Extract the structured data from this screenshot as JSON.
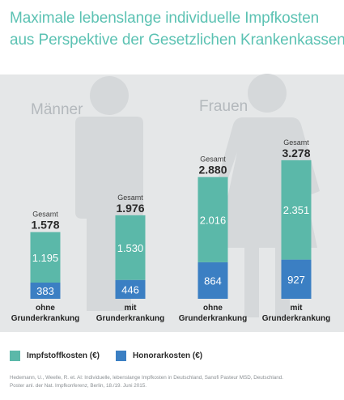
{
  "title_line1": "Maximale lebenslange individuelle Impfkosten",
  "title_line2": "aus Perspektive der Gesetzlichen Krankenkassen.",
  "colors": {
    "vaccine": "#5bb8a9",
    "fee": "#3b7fc3",
    "title": "#5cc2b3",
    "silhouette": "#d5d8da",
    "panel": "#e5e7e8"
  },
  "icons": {
    "male": "male-silhouette-icon",
    "female": "female-silhouette-icon"
  },
  "chart_data": {
    "type": "bar",
    "stacked": true,
    "groups": [
      "Männer",
      "Frauen"
    ],
    "total_caption": "Gesamt",
    "bars": [
      {
        "group": "Männer",
        "category": [
          "ohne",
          "Grunderkrankung"
        ],
        "vaccine": "1.195",
        "fee": "383",
        "total": "1.578",
        "vaccine_value": 1195,
        "fee_value": 383
      },
      {
        "group": "Männer",
        "category": [
          "mit",
          "Grunderkrankung"
        ],
        "vaccine": "1.530",
        "fee": "446",
        "total": "1.976",
        "vaccine_value": 1530,
        "fee_value": 446
      },
      {
        "group": "Frauen",
        "category": [
          "ohne",
          "Grunderkrankung"
        ],
        "vaccine": "2.016",
        "fee": "864",
        "total": "2.880",
        "vaccine_value": 2016,
        "fee_value": 864
      },
      {
        "group": "Frauen",
        "category": [
          "mit",
          "Grunderkrankung"
        ],
        "vaccine": "2.351",
        "fee": "927",
        "total": "3.278",
        "vaccine_value": 2351,
        "fee_value": 927
      }
    ],
    "series": [
      {
        "name": "Impfstoffkosten (€)",
        "key": "vaccine"
      },
      {
        "name": "Honorarkosten (€)",
        "key": "fee"
      }
    ],
    "legend_position": "bottom-left"
  },
  "source_line1": "Hedemann, U., Weelle, R. et. Al: Individuelle, lebenslange Impfkosten in Deutschland, Sanofi Pasteur MSD, Deutschland.",
  "source_line2": "Poster anl. der Nat. Impfkonferenz, Berlin, 18./19. Juni 2015."
}
